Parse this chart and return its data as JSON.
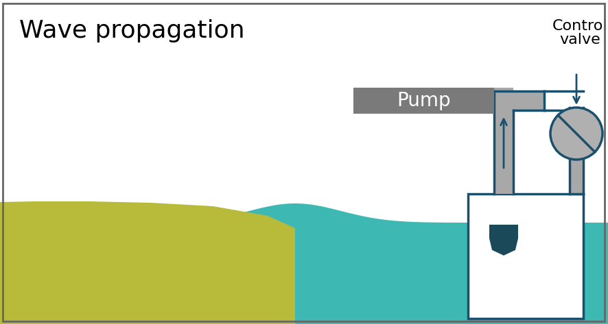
{
  "title": "Wave propagation",
  "title_fontsize": 26,
  "bg_color": "#ffffff",
  "border_color": "#666666",
  "teal_color": "#3db8b2",
  "olive_color": "#b8ba3a",
  "pipe_fill_color": "#a8a8a8",
  "pipe_outline_color": "#1a4f6e",
  "pump_fill_color": "#7a7a7a",
  "pump_text_color": "#ffffff",
  "pump_label": "Pump",
  "control_label_line1": "Control",
  "control_label_line2": "valve",
  "valve_fill_color": "#b0b0b0",
  "paddle_color": "#1a4a5a",
  "fig_width": 8.86,
  "fig_height": 4.73,
  "dpi": 100
}
